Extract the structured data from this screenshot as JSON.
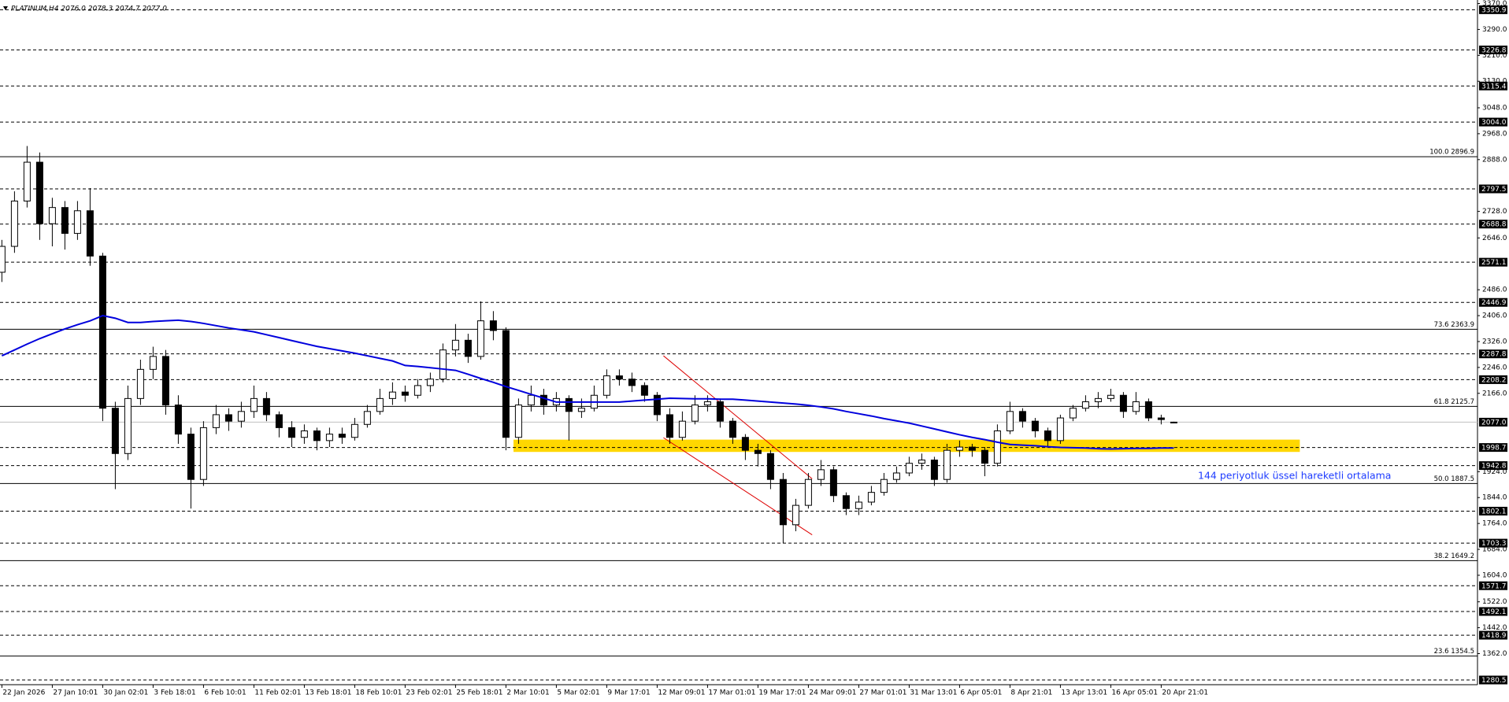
{
  "chart_data": {
    "type": "candlestick",
    "title": "PLATINUM,H4  2076.0 2078.3 2074.7 2077.0",
    "categories": [
      "22 Jan 2026",
      null,
      null,
      null,
      "27 Jan 10:01",
      null,
      null,
      null,
      "30 Jan 02:01",
      null,
      null,
      null,
      "3 Feb 18:01",
      null,
      null,
      null,
      "6 Feb 10:01",
      null,
      null,
      null,
      "11 Feb 02:01",
      null,
      null,
      null,
      "13 Feb 18:01",
      null,
      null,
      null,
      "18 Feb 10:01",
      null,
      null,
      null,
      "23 Feb 02:01",
      null,
      null,
      null,
      "25 Feb 18:01",
      null,
      null,
      null,
      "2 Mar 10:01",
      null,
      null,
      null,
      "5 Mar 02:01",
      null,
      null,
      null,
      "9 Mar 17:01",
      null,
      null,
      null,
      "12 Mar 09:01",
      null,
      null,
      null,
      "17 Mar 01:01",
      null,
      null,
      null,
      "19 Mar 17:01",
      null,
      null,
      null,
      "24 Mar 09:01",
      null,
      null,
      null,
      "27 Mar 01:01",
      null,
      null,
      null,
      "31 Mar 13:01",
      null,
      null,
      null,
      "6 Apr 05:01",
      null,
      null,
      null,
      "8 Apr 21:01",
      null,
      null,
      null,
      "13 Apr 13:01",
      null,
      null,
      null,
      "16 Apr 05:01",
      null,
      null,
      null,
      "20 Apr 21:01",
      null
    ],
    "ohlc": [
      [
        2540,
        2640,
        2510,
        2620
      ],
      [
        2620,
        2790,
        2600,
        2760
      ],
      [
        2760,
        2930,
        2740,
        2880
      ],
      [
        2880,
        2910,
        2640,
        2690
      ],
      [
        2690,
        2770,
        2620,
        2740
      ],
      [
        2740,
        2760,
        2610,
        2660
      ],
      [
        2660,
        2760,
        2640,
        2730
      ],
      [
        2730,
        2800,
        2560,
        2590
      ],
      [
        2590,
        2600,
        2080,
        2120
      ],
      [
        2120,
        2140,
        1870,
        1980
      ],
      [
        1980,
        2190,
        1960,
        2150
      ],
      [
        2150,
        2270,
        2130,
        2240
      ],
      [
        2240,
        2310,
        2210,
        2280
      ],
      [
        2280,
        2300,
        2100,
        2130
      ],
      [
        2130,
        2160,
        2010,
        2040
      ],
      [
        2040,
        2060,
        1810,
        1900
      ],
      [
        1900,
        2080,
        1880,
        2060
      ],
      [
        2060,
        2130,
        2040,
        2100
      ],
      [
        2100,
        2120,
        2050,
        2080
      ],
      [
        2080,
        2140,
        2060,
        2110
      ],
      [
        2110,
        2190,
        2090,
        2150
      ],
      [
        2150,
        2170,
        2080,
        2100
      ],
      [
        2100,
        2110,
        2030,
        2060
      ],
      [
        2060,
        2080,
        2000,
        2030
      ],
      [
        2030,
        2070,
        2010,
        2050
      ],
      [
        2050,
        2060,
        1990,
        2020
      ],
      [
        2020,
        2060,
        2000,
        2040
      ],
      [
        2040,
        2060,
        2010,
        2030
      ],
      [
        2030,
        2090,
        2020,
        2070
      ],
      [
        2070,
        2130,
        2060,
        2110
      ],
      [
        2110,
        2180,
        2100,
        2150
      ],
      [
        2150,
        2200,
        2130,
        2170
      ],
      [
        2170,
        2190,
        2140,
        2160
      ],
      [
        2160,
        2210,
        2150,
        2190
      ],
      [
        2190,
        2230,
        2170,
        2210
      ],
      [
        2210,
        2320,
        2200,
        2300
      ],
      [
        2300,
        2380,
        2280,
        2330
      ],
      [
        2330,
        2350,
        2260,
        2280
      ],
      [
        2280,
        2450,
        2270,
        2390
      ],
      [
        2390,
        2420,
        2330,
        2360
      ],
      [
        2360,
        2370,
        1990,
        2030
      ],
      [
        2030,
        2150,
        2010,
        2130
      ],
      [
        2130,
        2190,
        2110,
        2160
      ],
      [
        2160,
        2180,
        2100,
        2130
      ],
      [
        2130,
        2170,
        2110,
        2150
      ],
      [
        2150,
        2160,
        2020,
        2110
      ],
      [
        2110,
        2150,
        2090,
        2120
      ],
      [
        2120,
        2190,
        2110,
        2160
      ],
      [
        2160,
        2240,
        2150,
        2220
      ],
      [
        2220,
        2240,
        2190,
        2210
      ],
      [
        2210,
        2230,
        2170,
        2190
      ],
      [
        2190,
        2200,
        2140,
        2160
      ],
      [
        2160,
        2170,
        2080,
        2100
      ],
      [
        2100,
        2120,
        2010,
        2030
      ],
      [
        2030,
        2110,
        2020,
        2080
      ],
      [
        2080,
        2160,
        2070,
        2130
      ],
      [
        2130,
        2160,
        2110,
        2140
      ],
      [
        2140,
        2150,
        2060,
        2080
      ],
      [
        2080,
        2090,
        2010,
        2030
      ],
      [
        2030,
        2040,
        1960,
        1990
      ],
      [
        1990,
        2010,
        1940,
        1980
      ],
      [
        1980,
        1990,
        1870,
        1900
      ],
      [
        1900,
        1920,
        1703,
        1760
      ],
      [
        1760,
        1840,
        1740,
        1820
      ],
      [
        1820,
        1920,
        1810,
        1900
      ],
      [
        1900,
        1960,
        1880,
        1930
      ],
      [
        1930,
        1940,
        1830,
        1850
      ],
      [
        1850,
        1860,
        1790,
        1810
      ],
      [
        1810,
        1850,
        1790,
        1830
      ],
      [
        1830,
        1880,
        1820,
        1860
      ],
      [
        1860,
        1920,
        1850,
        1900
      ],
      [
        1900,
        1940,
        1890,
        1920
      ],
      [
        1920,
        1970,
        1910,
        1950
      ],
      [
        1950,
        1980,
        1930,
        1960
      ],
      [
        1960,
        1970,
        1880,
        1900
      ],
      [
        1900,
        2010,
        1890,
        1990
      ],
      [
        1990,
        2020,
        1970,
        2000
      ],
      [
        2000,
        2010,
        1970,
        1990
      ],
      [
        1990,
        2000,
        1910,
        1950
      ],
      [
        1950,
        2070,
        1940,
        2050
      ],
      [
        2050,
        2140,
        2040,
        2110
      ],
      [
        2110,
        2120,
        2060,
        2080
      ],
      [
        2080,
        2090,
        2030,
        2050
      ],
      [
        2050,
        2060,
        2000,
        2020
      ],
      [
        2020,
        2100,
        2010,
        2090
      ],
      [
        2090,
        2130,
        2080,
        2120
      ],
      [
        2120,
        2160,
        2110,
        2140
      ],
      [
        2140,
        2170,
        2120,
        2150
      ],
      [
        2150,
        2180,
        2140,
        2160
      ],
      [
        2160,
        2170,
        2090,
        2110
      ],
      [
        2110,
        2170,
        2100,
        2140
      ],
      [
        2140,
        2150,
        2080,
        2090
      ],
      [
        2090,
        2100,
        2070,
        2085
      ],
      [
        2076,
        2078.3,
        2074.7,
        2077.0
      ]
    ],
    "up_color": "#ffffff",
    "down_color": "#000000",
    "ema": {
      "color": "#0000dd",
      "values": [
        2282,
        2300,
        2318,
        2335,
        2350,
        2365,
        2378,
        2390,
        2406,
        2398,
        2385,
        2385,
        2388,
        2390,
        2392,
        2388,
        2382,
        2375,
        2368,
        2362,
        2356,
        2347,
        2338,
        2329,
        2320,
        2311,
        2304,
        2297,
        2290,
        2282,
        2274,
        2266,
        2252,
        2249,
        2245,
        2241,
        2237,
        2225,
        2212,
        2200,
        2187,
        2175,
        2163,
        2151,
        2139,
        2139,
        2139,
        2139,
        2139,
        2139,
        2142,
        2145,
        2148,
        2151,
        2150,
        2149,
        2149,
        2148,
        2148,
        2145,
        2142,
        2139,
        2136,
        2133,
        2129,
        2124,
        2118,
        2110,
        2103,
        2096,
        2088,
        2081,
        2074,
        2065,
        2056,
        2047,
        2038,
        2030,
        2023,
        2015,
        2008,
        2006,
        2004,
        2001,
        1999,
        1998,
        1997,
        1995,
        1994,
        1995,
        1996,
        1996,
        1997,
        1997
      ]
    },
    "ylim": [
      1266,
      3381
    ],
    "yticks": [
      {
        "value": 3370,
        "label": "3370.0"
      },
      {
        "value": 3290,
        "label": "3290.0"
      },
      {
        "value": 3210,
        "label": "3210.0"
      },
      {
        "value": 3130,
        "label": "3130.0"
      },
      {
        "value": 3048,
        "label": "3048.0"
      },
      {
        "value": 2968,
        "label": "2968.0"
      },
      {
        "value": 2888,
        "label": "2888.0"
      },
      {
        "value": 2728,
        "label": "2728.0"
      },
      {
        "value": 2646,
        "label": "2646.0"
      },
      {
        "value": 2486,
        "label": "2486.0"
      },
      {
        "value": 2406,
        "label": "2406.0"
      },
      {
        "value": 2326,
        "label": "2326.0"
      },
      {
        "value": 2246,
        "label": "2246.0"
      },
      {
        "value": 2166,
        "label": "2166.0"
      },
      {
        "value": 1924,
        "label": "1924.0"
      },
      {
        "value": 1844,
        "label": "1844.0"
      },
      {
        "value": 1764,
        "label": "1764.0"
      },
      {
        "value": 1684,
        "label": "1684.0"
      },
      {
        "value": 1604,
        "label": "1604.0"
      },
      {
        "value": 1522,
        "label": "1522.0"
      },
      {
        "value": 1442,
        "label": "1442.0"
      },
      {
        "value": 1362,
        "label": "1362.0"
      }
    ],
    "levels": [
      3350.9,
      3226.8,
      3115.4,
      {
        "value": 3004,
        "label": "3004.0"
      },
      2797.5,
      2688.8,
      2571.1,
      2446.9,
      2287.8,
      2208.2,
      1998.7,
      1942.8,
      1802.1,
      1703.3,
      1571.7,
      1492.1,
      1418.9,
      1280.5
    ],
    "current_price": {
      "value": 2077,
      "label": "2077.0"
    },
    "fib_levels": [
      {
        "value": 2896.9,
        "label": "100.0 2896.9"
      },
      {
        "value": 2363.9,
        "label": "73.6 2363.9"
      },
      {
        "value": 2125.7,
        "label": "61.8 2125.7"
      },
      {
        "value": 1887.5,
        "label": "50.0 1887.5"
      },
      {
        "value": 1649.2,
        "label": "38.2 1649.2"
      },
      {
        "value": 1354.5,
        "label": "23.6 1354.5"
      }
    ],
    "zone": {
      "range": [
        1985,
        2023
      ],
      "x_range": [
        40.6,
        103
      ],
      "color": "#ffd700"
    },
    "trend_lines": [
      {
        "x": [
          52.5,
          64.3
        ],
        "y": [
          2282,
          1902
        ],
        "color": "#dd0000"
      },
      {
        "x": [
          52.5,
          64.3
        ],
        "y": [
          2029,
          1729
        ],
        "color": "#dd0000"
      }
    ],
    "annotation": {
      "text": "144 periyotluk üssel hareketli ortalama",
      "color": "#1e3cff"
    }
  }
}
